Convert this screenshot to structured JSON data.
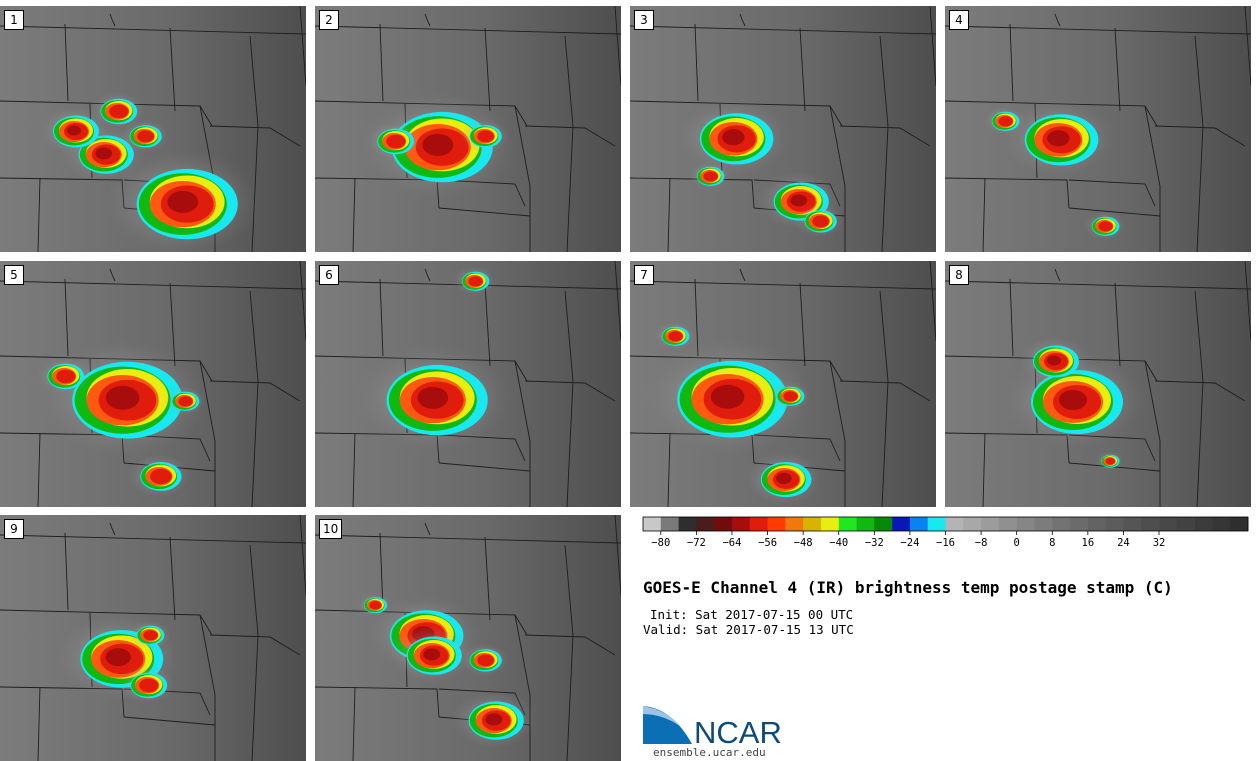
{
  "panels": [
    {
      "num": "1",
      "storms": [
        [
          185,
          197,
          1.1
        ],
        [
          105,
          148,
          0.6
        ],
        [
          75,
          125,
          0.5
        ],
        [
          118,
          105,
          0.4
        ],
        [
          145,
          130,
          0.35
        ]
      ]
    },
    {
      "num": "2",
      "storms": [
        [
          125,
          140,
          1.1
        ],
        [
          80,
          135,
          0.4
        ],
        [
          170,
          130,
          0.35
        ]
      ]
    },
    {
      "num": "3",
      "storms": [
        [
          105,
          132,
          0.8
        ],
        [
          170,
          195,
          0.6
        ],
        [
          190,
          215,
          0.35
        ],
        [
          80,
          170,
          0.3
        ]
      ]
    },
    {
      "num": "4",
      "storms": [
        [
          115,
          133,
          0.8
        ],
        [
          160,
          220,
          0.3
        ],
        [
          60,
          115,
          0.3
        ]
      ]
    },
    {
      "num": "5",
      "storms": [
        [
          125,
          138,
          1.2
        ],
        [
          160,
          215,
          0.45
        ],
        [
          65,
          115,
          0.4
        ],
        [
          185,
          140,
          0.3
        ]
      ]
    },
    {
      "num": "6",
      "storms": [
        [
          120,
          138,
          1.1
        ],
        [
          160,
          20,
          0.3
        ]
      ]
    },
    {
      "num": "7",
      "storms": [
        [
          100,
          137,
          1.2
        ],
        [
          155,
          218,
          0.55
        ],
        [
          45,
          75,
          0.3
        ],
        [
          160,
          135,
          0.3
        ]
      ]
    },
    {
      "num": "8",
      "storms": [
        [
          130,
          140,
          1.0
        ],
        [
          110,
          100,
          0.5
        ],
        [
          165,
          200,
          0.2
        ]
      ]
    },
    {
      "num": "9",
      "storms": [
        [
          120,
          143,
          0.9
        ],
        [
          148,
          170,
          0.4
        ],
        [
          150,
          120,
          0.3
        ]
      ]
    },
    {
      "num": "10",
      "storms": [
        [
          110,
          120,
          0.8
        ],
        [
          118,
          140,
          0.6
        ],
        [
          180,
          205,
          0.6
        ],
        [
          170,
          145,
          0.35
        ],
        [
          60,
          90,
          0.25
        ]
      ]
    }
  ],
  "colorbar": {
    "colors": [
      "#c8c8c8",
      "#7a7a7a",
      "#2e2e2e",
      "#4a1c1c",
      "#720c0c",
      "#a80c0c",
      "#e01c0c",
      "#ff3a00",
      "#f0780c",
      "#d8b400",
      "#eaee10",
      "#20e820",
      "#10b810",
      "#088808",
      "#0818b8",
      "#0a82f0",
      "#18e8f0",
      "#b4b4b4",
      "#a8a8a8",
      "#9c9c9c",
      "#909090",
      "#868686",
      "#7c7c7c",
      "#737373",
      "#6b6b6b",
      "#636363",
      "#5c5c5c",
      "#555555",
      "#4e4e4e",
      "#484848",
      "#424242",
      "#3c3c3c",
      "#363636",
      "#2e2e2e"
    ],
    "ticks": [
      "−80",
      "−72",
      "−64",
      "−56",
      "−48",
      "−40",
      "−32",
      "−24",
      "−16",
      "−8",
      "0",
      "8",
      "16",
      "24",
      "32"
    ]
  },
  "title": "GOES-E Channel 4 (IR) brightness temp postage stamp (C)",
  "init": "Init: Sat 2017-07-15 00 UTC",
  "valid": "Valid: Sat 2017-07-15 13 UTC",
  "logo": {
    "text": "NCAR",
    "url": "ensemble.ucar.edu"
  }
}
